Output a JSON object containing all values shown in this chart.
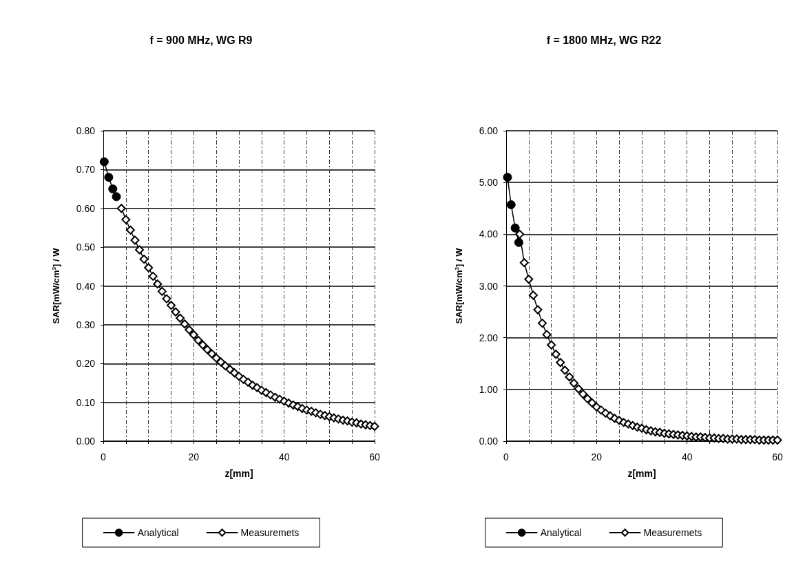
{
  "chart_data": [
    {
      "type": "line",
      "title": "f = 900 MHz, WG R9",
      "xlabel": "z[mm]",
      "ylabel": "SAR[mW/cm$^{3}$] / W",
      "xlim": [
        0,
        60
      ],
      "xticks": [
        0,
        {
          "value": 5,
          "label": null
        },
        {
          "value": 10,
          "label": null
        },
        {
          "value": 15,
          "label": null
        },
        20,
        {
          "value": 25,
          "label": null
        },
        {
          "value": 30,
          "label": null
        },
        {
          "value": 35,
          "label": null
        },
        40,
        {
          "value": 45,
          "label": null
        },
        {
          "value": 50,
          "label": null
        },
        {
          "value": 55,
          "label": null
        },
        60
      ],
      "ylim": [
        0,
        0.8
      ],
      "yticks": [
        {
          "value": 0,
          "label": "0.00"
        },
        {
          "value": 0.1,
          "label": "0.10"
        },
        {
          "value": 0.2,
          "label": "0.20"
        },
        {
          "value": 0.3,
          "label": "0.30"
        },
        {
          "value": 0.4,
          "label": "0.40"
        },
        {
          "value": 0.5,
          "label": "0.50"
        },
        {
          "value": 0.6,
          "label": "0.60"
        },
        {
          "value": 0.7,
          "label": "0.70"
        },
        {
          "value": 0.8,
          "label": "0.80"
        }
      ],
      "grid": true,
      "legend": "bottom",
      "line_style": "solid",
      "series": [
        {
          "name": "Analytical",
          "color": "#000000",
          "marker": "circle",
          "x": [
            0.2,
            1.2,
            2.1,
            2.9
          ],
          "values": [
            0.72,
            0.68,
            0.65,
            0.63
          ]
        },
        {
          "name": "Measuremets",
          "color": "#000000",
          "marker": "diamond",
          "x": [
            4,
            5,
            6,
            7,
            8,
            9,
            10,
            11,
            12,
            13,
            14,
            15,
            16,
            17,
            18,
            19,
            20,
            21,
            22,
            23,
            24,
            25,
            26,
            27,
            28,
            29,
            30,
            31,
            32,
            33,
            34,
            35,
            36,
            37,
            38,
            39,
            40,
            41,
            42,
            43,
            44,
            45,
            46,
            47,
            48,
            49,
            50,
            51,
            52,
            53,
            54,
            55,
            56,
            57,
            58,
            59,
            60
          ],
          "values": [
            0.6,
            0.571,
            0.544,
            0.518,
            0.493,
            0.469,
            0.447,
            0.425,
            0.405,
            0.386,
            0.367,
            0.35,
            0.333,
            0.317,
            0.302,
            0.287,
            0.274,
            0.26,
            0.248,
            0.236,
            0.225,
            0.214,
            0.204,
            0.194,
            0.185,
            0.176,
            0.167,
            0.159,
            0.152,
            0.144,
            0.138,
            0.131,
            0.125,
            0.119,
            0.113,
            0.108,
            0.103,
            0.098,
            0.093,
            0.089,
            0.084,
            0.08,
            0.077,
            0.073,
            0.069,
            0.066,
            0.063,
            0.06,
            0.057,
            0.054,
            0.052,
            0.049,
            0.047,
            0.044,
            0.042,
            0.04,
            0.038
          ]
        }
      ]
    },
    {
      "type": "line",
      "title": "f = 1800 MHz, WG R22",
      "xlabel": "z[mm]",
      "ylabel": "SAR[mW/cm$^{3}$] / W",
      "xlim": [
        0,
        60
      ],
      "xticks": [
        0,
        {
          "value": 5,
          "label": null
        },
        {
          "value": 10,
          "label": null
        },
        {
          "value": 15,
          "label": null
        },
        20,
        {
          "value": 25,
          "label": null
        },
        {
          "value": 30,
          "label": null
        },
        {
          "value": 35,
          "label": null
        },
        40,
        {
          "value": 45,
          "label": null
        },
        {
          "value": 50,
          "label": null
        },
        {
          "value": 55,
          "label": null
        },
        60
      ],
      "ylim": [
        0,
        6
      ],
      "yticks": [
        {
          "value": 0,
          "label": "0.00"
        },
        {
          "value": 1,
          "label": "1.00"
        },
        {
          "value": 2,
          "label": "2.00"
        },
        {
          "value": 3,
          "label": "3.00"
        },
        {
          "value": 4,
          "label": "4.00"
        },
        {
          "value": 5,
          "label": "5.00"
        },
        {
          "value": 6,
          "label": "6.00"
        }
      ],
      "grid": true,
      "legend": "bottom",
      "line_style": "solid",
      "series": [
        {
          "name": "Analytical",
          "color": "#000000",
          "marker": "circle",
          "x": [
            0.3,
            1.1,
            2.0,
            2.8
          ],
          "values": [
            5.1,
            4.57,
            4.12,
            3.84
          ]
        },
        {
          "name": "Measuremets",
          "color": "#000000",
          "marker": "diamond",
          "x": [
            3,
            4,
            5,
            6,
            7,
            8,
            9,
            10,
            11,
            12,
            13,
            14,
            15,
            16,
            17,
            18,
            19,
            20,
            21,
            22,
            23,
            24,
            25,
            26,
            27,
            28,
            29,
            30,
            31,
            32,
            33,
            34,
            35,
            36,
            37,
            38,
            39,
            40,
            41,
            42,
            43,
            44,
            45,
            46,
            47,
            48,
            49,
            50,
            51,
            52,
            53,
            54,
            55,
            56,
            57,
            58,
            59,
            60
          ],
          "values": [
            4.0,
            3.45,
            3.13,
            2.82,
            2.54,
            2.28,
            2.06,
            1.86,
            1.68,
            1.52,
            1.37,
            1.24,
            1.12,
            1.01,
            0.91,
            0.82,
            0.74,
            0.66,
            0.6,
            0.54,
            0.49,
            0.44,
            0.4,
            0.36,
            0.33,
            0.3,
            0.27,
            0.25,
            0.22,
            0.2,
            0.18,
            0.17,
            0.15,
            0.14,
            0.13,
            0.12,
            0.11,
            0.1,
            0.09,
            0.08,
            0.08,
            0.07,
            0.06,
            0.06,
            0.05,
            0.05,
            0.04,
            0.04,
            0.04,
            0.03,
            0.03,
            0.03,
            0.03,
            0.02,
            0.02,
            0.02,
            0.02,
            0.02
          ]
        }
      ]
    }
  ]
}
